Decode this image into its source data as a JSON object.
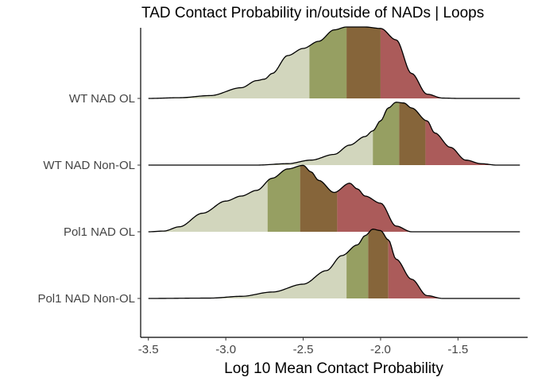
{
  "chart_data": {
    "type": "ridgeline",
    "title": "TAD Contact Probability in/outside of NADs | Loops",
    "xlabel": "Log 10 Mean Contact Probability",
    "ylabel": "",
    "xlim": [
      -3.55,
      -1.05
    ],
    "x_ticks": [
      "-3.5",
      "-3.0",
      "-2.5",
      "-2.0",
      "-1.5"
    ],
    "x_tick_values": [
      -3.5,
      -3.0,
      -2.5,
      -2.0,
      -1.5
    ],
    "grid": false,
    "quantile_colors": [
      "#d2d6bd",
      "#969f62",
      "#86653a",
      "#ab5b5a"
    ],
    "outline_color": "#000000",
    "series": [
      {
        "name": "WT NAD OL",
        "quantiles": [
          -2.46,
          -2.22,
          -2.0
        ],
        "density": [
          [
            -3.5,
            0.0
          ],
          [
            -3.3,
            0.01
          ],
          [
            -3.1,
            0.04
          ],
          [
            -2.9,
            0.15
          ],
          [
            -2.8,
            0.25
          ],
          [
            -2.75,
            0.27
          ],
          [
            -2.7,
            0.35
          ],
          [
            -2.6,
            0.6
          ],
          [
            -2.5,
            0.7
          ],
          [
            -2.4,
            0.8
          ],
          [
            -2.3,
            0.96
          ],
          [
            -2.22,
            1.0
          ],
          [
            -2.1,
            1.0
          ],
          [
            -2.0,
            0.98
          ],
          [
            -1.9,
            0.82
          ],
          [
            -1.8,
            0.35
          ],
          [
            -1.7,
            0.06
          ],
          [
            -1.6,
            0.005
          ],
          [
            -1.5,
            0.0
          ],
          [
            -1.1,
            0.0
          ]
        ]
      },
      {
        "name": "WT NAD Non-OL",
        "quantiles": [
          -2.05,
          -1.88,
          -1.71
        ],
        "density": [
          [
            -3.5,
            0.0
          ],
          [
            -2.8,
            0.0
          ],
          [
            -2.6,
            0.02
          ],
          [
            -2.45,
            0.07
          ],
          [
            -2.3,
            0.15
          ],
          [
            -2.2,
            0.28
          ],
          [
            -2.1,
            0.4
          ],
          [
            -2.05,
            0.48
          ],
          [
            -2.0,
            0.62
          ],
          [
            -1.95,
            0.8
          ],
          [
            -1.9,
            0.88
          ],
          [
            -1.85,
            0.87
          ],
          [
            -1.8,
            0.8
          ],
          [
            -1.7,
            0.62
          ],
          [
            -1.65,
            0.45
          ],
          [
            -1.55,
            0.25
          ],
          [
            -1.45,
            0.07
          ],
          [
            -1.35,
            0.02
          ],
          [
            -1.25,
            0.0
          ],
          [
            -1.1,
            0.0
          ]
        ]
      },
      {
        "name": "Pol1 NAD OL",
        "quantiles": [
          -2.73,
          -2.52,
          -2.28
        ],
        "density": [
          [
            -3.5,
            0.0
          ],
          [
            -3.4,
            0.01
          ],
          [
            -3.3,
            0.07
          ],
          [
            -3.15,
            0.26
          ],
          [
            -3.0,
            0.43
          ],
          [
            -2.9,
            0.5
          ],
          [
            -2.8,
            0.58
          ],
          [
            -2.7,
            0.75
          ],
          [
            -2.6,
            0.88
          ],
          [
            -2.5,
            0.93
          ],
          [
            -2.45,
            0.84
          ],
          [
            -2.4,
            0.72
          ],
          [
            -2.3,
            0.55
          ],
          [
            -2.2,
            0.68
          ],
          [
            -2.15,
            0.6
          ],
          [
            -2.1,
            0.5
          ],
          [
            -2.0,
            0.4
          ],
          [
            -1.9,
            0.08
          ],
          [
            -1.8,
            0.0
          ],
          [
            -1.1,
            0.0
          ]
        ]
      },
      {
        "name": "Pol1 NAD Non-OL",
        "quantiles": [
          -2.22,
          -2.08,
          -1.95
        ],
        "density": [
          [
            -3.5,
            0.0
          ],
          [
            -3.1,
            0.005
          ],
          [
            -2.9,
            0.03
          ],
          [
            -2.7,
            0.09
          ],
          [
            -2.5,
            0.2
          ],
          [
            -2.35,
            0.39
          ],
          [
            -2.25,
            0.6
          ],
          [
            -2.15,
            0.75
          ],
          [
            -2.1,
            0.88
          ],
          [
            -2.05,
            0.97
          ],
          [
            -2.0,
            0.95
          ],
          [
            -1.95,
            0.82
          ],
          [
            -1.9,
            0.55
          ],
          [
            -1.8,
            0.27
          ],
          [
            -1.7,
            0.04
          ],
          [
            -1.6,
            0.0
          ],
          [
            -1.1,
            0.0
          ]
        ]
      }
    ],
    "y_order_top_to_bottom": [
      "WT NAD OL",
      "WT NAD Non-OL",
      "Pol1 NAD OL",
      "Pol1 NAD Non-OL"
    ]
  }
}
